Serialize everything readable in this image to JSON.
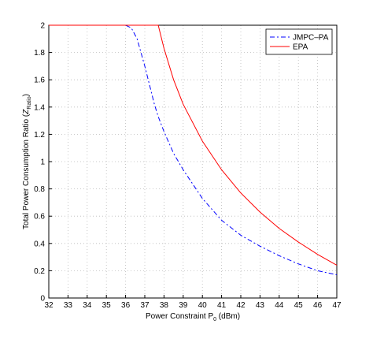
{
  "chart_data": {
    "type": "line",
    "xlabel": [
      "Power Constraint P",
      "0",
      " (dBm)"
    ],
    "ylabel": [
      "Total Power Consumption Ratio (",
      "Z",
      "Ratio",
      ")"
    ],
    "x": [
      32,
      36,
      36.3,
      36.6,
      37,
      37.5,
      37.7,
      38,
      38.5,
      39,
      40,
      41,
      42,
      43,
      44,
      45,
      46,
      47
    ],
    "series": [
      {
        "name": "JMPC–PA",
        "color": "#0000ff",
        "dash": "6,3,2,3",
        "values": [
          2,
          2,
          1.98,
          1.9,
          1.7,
          1.42,
          1.33,
          1.22,
          1.06,
          0.94,
          0.73,
          0.57,
          0.46,
          0.38,
          0.31,
          0.25,
          0.2,
          0.17
        ]
      },
      {
        "name": "EPA",
        "color": "#ff0000",
        "dash": "none",
        "values": [
          2,
          2,
          2,
          2,
          2,
          2,
          2,
          1.83,
          1.6,
          1.42,
          1.15,
          0.94,
          0.77,
          0.63,
          0.51,
          0.41,
          0.32,
          0.24
        ]
      }
    ],
    "xlim": [
      32,
      47
    ],
    "xticks": [
      32,
      33,
      34,
      35,
      36,
      37,
      38,
      39,
      40,
      41,
      42,
      43,
      44,
      45,
      46,
      47
    ],
    "ylim": [
      0,
      2
    ],
    "yticks": [
      0,
      0.2,
      0.4,
      0.6,
      0.8,
      1,
      1.2,
      1.4,
      1.6,
      1.8,
      2
    ],
    "grid": true,
    "legend": "top-right"
  }
}
